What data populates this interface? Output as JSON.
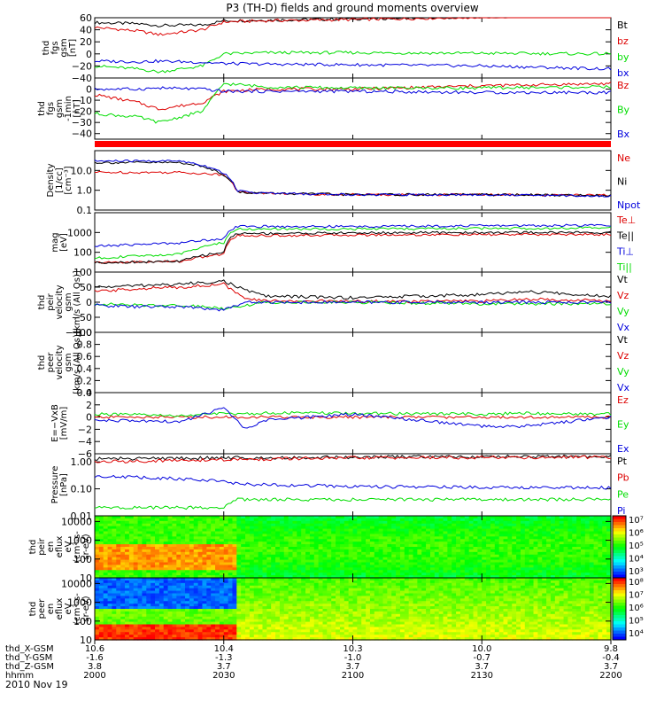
{
  "chart_data": {
    "title": "P3 (TH-D) fields and ground moments overview",
    "type": "line",
    "x_range": [
      "2000",
      "2200"
    ],
    "x_tick_labels": [
      "2000",
      "2030",
      "2100",
      "2130",
      "2200"
    ],
    "date_label": "2010 Nov 19",
    "ephemeris": {
      "rows": [
        {
          "label": "thd_X-GSM",
          "values": [
            "10.6",
            "10.4",
            "10.3",
            "10.0",
            "9.8"
          ]
        },
        {
          "label": "thd_Y-GSM",
          "values": [
            "-1.6",
            "-1.3",
            "-1.0",
            "-0.7",
            "-0.4"
          ]
        },
        {
          "label": "thd_Z-GSM",
          "values": [
            "3.8",
            "3.7",
            "3.7",
            "3.7",
            "3.7"
          ]
        },
        {
          "label": "hhmm",
          "values": [
            "2000",
            "2030",
            "2100",
            "2130",
            "2200"
          ]
        }
      ]
    },
    "panels": [
      {
        "id": "fgs_gsm",
        "ylabel": [
          "thd",
          "fgs",
          "gsm",
          "[nT]"
        ],
        "ylim": [
          -40,
          60
        ],
        "scale": "linear",
        "yticks": [
          60,
          40,
          20,
          0,
          -20,
          -40
        ],
        "ytick_labels": [
          "60",
          "40",
          "20",
          "0",
          "−20",
          "−40"
        ],
        "series": [
          {
            "name": "Bt",
            "color": "#000000",
            "x": [
              2000,
              2010,
              2015,
              2025,
              2030,
              2040,
              2100,
              2130,
              2200
            ],
            "y": [
              52,
              50,
              47,
              48,
              55,
              56,
              58,
              62,
              65
            ]
          },
          {
            "name": "bz",
            "color": "#dd0000",
            "x": [
              2000,
              2010,
              2015,
              2025,
              2030,
              2040,
              2100,
              2130,
              2200
            ],
            "y": [
              44,
              38,
              32,
              40,
              53,
              55,
              57,
              61,
              65
            ]
          },
          {
            "name": "by",
            "color": "#00dd00",
            "x": [
              2000,
              2010,
              2015,
              2025,
              2030,
              2040,
              2100,
              2130,
              2200
            ],
            "y": [
              -20,
              -25,
              -30,
              -20,
              0,
              2,
              2,
              1,
              0
            ]
          },
          {
            "name": "bx",
            "color": "#0000dd",
            "x": [
              2000,
              2010,
              2015,
              2025,
              2030,
              2040,
              2100,
              2130,
              2200
            ],
            "y": [
              -12,
              -13,
              -12,
              -14,
              -16,
              -17,
              -18,
              -20,
              -25
            ]
          }
        ]
      },
      {
        "id": "fgs_gsm_1min",
        "ylabel": [
          "thd",
          "fgs",
          "gsm",
          "-1min",
          "[nT]"
        ],
        "ylim": [
          -45,
          10
        ],
        "scale": "linear",
        "yticks": [
          0,
          -10,
          -20,
          -30,
          -40
        ],
        "ytick_labels": [
          "0",
          "−10",
          "−20",
          "−30",
          "−40"
        ],
        "series": [
          {
            "name": "Bz",
            "color": "#dd0000",
            "x": [
              2000,
              2010,
              2015,
              2025,
              2030,
              2040,
              2100,
              2130,
              2200
            ],
            "y": [
              -5,
              -12,
              -18,
              -12,
              -2,
              0,
              0,
              3,
              5
            ]
          },
          {
            "name": "By",
            "color": "#00dd00",
            "x": [
              2000,
              2010,
              2015,
              2025,
              2030,
              2040,
              2100,
              2130,
              2200
            ],
            "y": [
              -22,
              -25,
              -30,
              -20,
              5,
              2,
              1,
              1,
              2
            ]
          },
          {
            "name": "Bx",
            "color": "#0000dd",
            "x": [
              2000,
              2010,
              2015,
              2025,
              2030,
              2040,
              2100,
              2130,
              2200
            ],
            "y": [
              0,
              0,
              1,
              0,
              -2,
              -2,
              -2,
              -3,
              -3
            ]
          }
        ]
      },
      {
        "id": "density",
        "ylabel": [
          "Density",
          "[1/cc]",
          "[cm⁻³]"
        ],
        "ylim": [
          0.1,
          100
        ],
        "scale": "log",
        "yticks": [
          10,
          1,
          0.1
        ],
        "ytick_labels": [
          "10.0",
          "1.0",
          "0.1"
        ],
        "series": [
          {
            "name": "Ne",
            "color": "#dd0000",
            "x": [
              2000,
              2020,
              2030,
              2033,
              2040,
              2100,
              2130,
              2200
            ],
            "y": [
              8,
              8,
              6,
              0.8,
              0.7,
              0.6,
              0.6,
              0.55
            ]
          },
          {
            "name": "Ni",
            "color": "#000000",
            "x": [
              2000,
              2020,
              2030,
              2033,
              2040,
              2100,
              2130,
              2200
            ],
            "y": [
              25,
              25,
              6,
              0.8,
              0.7,
              0.6,
              0.6,
              0.55
            ]
          },
          {
            "name": "Npot",
            "color": "#0000dd",
            "x": [
              2000,
              2020,
              2030,
              2033,
              2040,
              2100,
              2130,
              2200
            ],
            "y": [
              30,
              30,
              7,
              0.9,
              0.7,
              0.6,
              0.6,
              0.5
            ]
          }
        ]
      },
      {
        "id": "temperature",
        "ylabel": [
          "mag",
          "[eV]"
        ],
        "ylim": [
          10,
          10000
        ],
        "scale": "log",
        "yticks": [
          1000,
          100
        ],
        "ytick_labels": [
          "1000",
          "100"
        ],
        "series": [
          {
            "name": "Te⊥",
            "color": "#dd0000",
            "x": [
              2000,
              2020,
              2030,
              2033,
              2040,
              2100,
              2130,
              2200
            ],
            "y": [
              30,
              35,
              80,
              700,
              700,
              750,
              780,
              800
            ]
          },
          {
            "name": "Te||",
            "color": "#000000",
            "x": [
              2000,
              2020,
              2030,
              2033,
              2040,
              2100,
              2130,
              2200
            ],
            "y": [
              30,
              35,
              100,
              900,
              900,
              950,
              1000,
              1000
            ]
          },
          {
            "name": "Ti⊥",
            "color": "#0000dd",
            "x": [
              2000,
              2020,
              2030,
              2033,
              2040,
              2100,
              2130,
              2200
            ],
            "y": [
              200,
              300,
              500,
              2000,
              2000,
              2000,
              2200,
              2300
            ]
          },
          {
            "name": "Ti||",
            "color": "#00dd00",
            "x": [
              2000,
              2020,
              2030,
              2033,
              2040,
              2100,
              2130,
              2200
            ],
            "y": [
              50,
              80,
              300,
              1500,
              1500,
              1500,
              1600,
              1700
            ]
          }
        ]
      },
      {
        "id": "peir_velocity",
        "ylabel": [
          "thd",
          "peir",
          "velocity",
          "gsm",
          "[km/s (All Qs)]"
        ],
        "ylim": [
          -100,
          100
        ],
        "scale": "linear",
        "yticks": [
          100,
          50,
          0,
          -50,
          -100
        ],
        "ytick_labels": [
          "100",
          "50",
          "0",
          "−50",
          "−100"
        ],
        "series": [
          {
            "name": "Vt",
            "color": "#000000",
            "x": [
              2000,
              2010,
              2020,
              2030,
              2035,
              2040,
              2100,
              2130,
              2140,
              2200
            ],
            "y": [
              50,
              55,
              60,
              70,
              40,
              20,
              15,
              25,
              35,
              20
            ]
          },
          {
            "name": "Vz",
            "color": "#dd0000",
            "x": [
              2000,
              2010,
              2020,
              2030,
              2035,
              2040,
              2100,
              2130,
              2140,
              2200
            ],
            "y": [
              35,
              45,
              50,
              60,
              10,
              5,
              3,
              3,
              10,
              5
            ]
          },
          {
            "name": "Vy",
            "color": "#00dd00",
            "x": [
              2000,
              2010,
              2020,
              2030,
              2035,
              2040,
              2100,
              2130,
              2140,
              2200
            ],
            "y": [
              -5,
              -10,
              -10,
              -20,
              -10,
              0,
              0,
              -5,
              -5,
              -5
            ]
          },
          {
            "name": "Vx",
            "color": "#0000dd",
            "x": [
              2000,
              2010,
              2020,
              2030,
              2035,
              2040,
              2100,
              2130,
              2140,
              2200
            ],
            "y": [
              -10,
              -15,
              -15,
              -25,
              0,
              0,
              0,
              0,
              0,
              0
            ]
          }
        ]
      },
      {
        "id": "peer_velocity",
        "ylabel": [
          "thd",
          "peer",
          "velocity",
          "gsm",
          "[km/s (All Qs)]"
        ],
        "ylim": [
          0,
          1
        ],
        "scale": "linear",
        "yticks": [
          1.0,
          0.8,
          0.6,
          0.4,
          0.2,
          0.0
        ],
        "ytick_labels": [
          "1.0",
          "0.8",
          "0.6",
          "0.4",
          "0.2",
          "0.0"
        ],
        "series": [
          {
            "name": "Vt",
            "color": "#000000",
            "x": [],
            "y": []
          },
          {
            "name": "Vz",
            "color": "#dd0000",
            "x": [],
            "y": []
          },
          {
            "name": "Vy",
            "color": "#00dd00",
            "x": [],
            "y": []
          },
          {
            "name": "Vx",
            "color": "#0000dd",
            "x": [],
            "y": []
          }
        ]
      },
      {
        "id": "efield",
        "ylabel": [
          "E=−VxB",
          "[mV/m]"
        ],
        "ylim": [
          -6,
          4
        ],
        "scale": "linear",
        "yticks": [
          4,
          2,
          0,
          -2,
          -4,
          -6
        ],
        "ytick_labels": [
          "4",
          "2",
          "0",
          "−2",
          "−4",
          "−6"
        ],
        "series": [
          {
            "name": "Ez",
            "color": "#dd0000",
            "x": [
              2000,
              2020,
              2030,
              2035,
              2040,
              2100,
              2130,
              2140,
              2200
            ],
            "y": [
              0,
              0,
              0,
              0,
              0,
              0,
              0,
              0,
              0
            ]
          },
          {
            "name": "Ey",
            "color": "#00dd00",
            "x": [
              2000,
              2020,
              2030,
              2035,
              2040,
              2100,
              2130,
              2140,
              2200
            ],
            "y": [
              0.5,
              0.2,
              0.6,
              0.5,
              0.7,
              0.6,
              0.5,
              0.6,
              0.5
            ]
          },
          {
            "name": "Ex",
            "color": "#0000dd",
            "x": [
              2000,
              2020,
              2030,
              2035,
              2040,
              2100,
              2130,
              2140,
              2200
            ],
            "y": [
              -0.5,
              -0.8,
              1.5,
              -2,
              -0.5,
              0.5,
              -1.5,
              -1.5,
              0
            ]
          }
        ]
      },
      {
        "id": "pressure",
        "ylabel": [
          "Pressure",
          "[nPa]"
        ],
        "ylim": [
          0.01,
          2
        ],
        "scale": "log",
        "yticks": [
          1,
          0.1,
          0.01
        ],
        "ytick_labels": [
          "1.00",
          "0.10",
          "0.01"
        ],
        "series": [
          {
            "name": "Pt",
            "color": "#000000",
            "x": [
              2000,
              2030,
              2100,
              2200
            ],
            "y": [
              1.3,
              1.4,
              1.5,
              1.6
            ]
          },
          {
            "name": "Pb",
            "color": "#dd0000",
            "x": [
              2000,
              2030,
              2100,
              2200
            ],
            "y": [
              1.0,
              1.2,
              1.4,
              1.5
            ]
          },
          {
            "name": "Pe",
            "color": "#00dd00",
            "x": [
              2000,
              2030,
              2033,
              2100,
              2200
            ],
            "y": [
              0.02,
              0.02,
              0.04,
              0.04,
              0.04
            ]
          },
          {
            "name": "Pi",
            "color": "#0000dd",
            "x": [
              2000,
              2030,
              2033,
              2100,
              2200
            ],
            "y": [
              0.3,
              0.2,
              0.15,
              0.12,
              0.11
            ]
          }
        ]
      },
      {
        "id": "ion_spectrogram",
        "type": "heatmap",
        "ylabel": [
          "thd",
          "peir",
          "en",
          "eflux",
          "eV",
          "(cm²-s-",
          "sr-eV)"
        ],
        "ylim": [
          10,
          20000
        ],
        "scale": "log",
        "yticks": [
          10000,
          1000,
          100,
          10
        ],
        "ytick_labels": [
          "10000",
          "1000",
          "100",
          "10"
        ],
        "colorbar_labels": [
          "10⁷",
          "10⁶",
          "10⁵",
          "10⁴",
          "10³"
        ]
      },
      {
        "id": "electron_spectrogram",
        "type": "heatmap",
        "ylabel": [
          "thd",
          "peer",
          "en",
          "eflux",
          "eV",
          "(cm²-s-",
          "sr-eV)"
        ],
        "ylim": [
          10,
          20000
        ],
        "scale": "log",
        "yticks": [
          10000,
          1000,
          100,
          10
        ],
        "ytick_labels": [
          "10000",
          "1000",
          "100",
          "10"
        ],
        "colorbar_labels": [
          "10⁸",
          "10⁷",
          "10⁶",
          "10⁵",
          "10⁴"
        ]
      }
    ]
  }
}
